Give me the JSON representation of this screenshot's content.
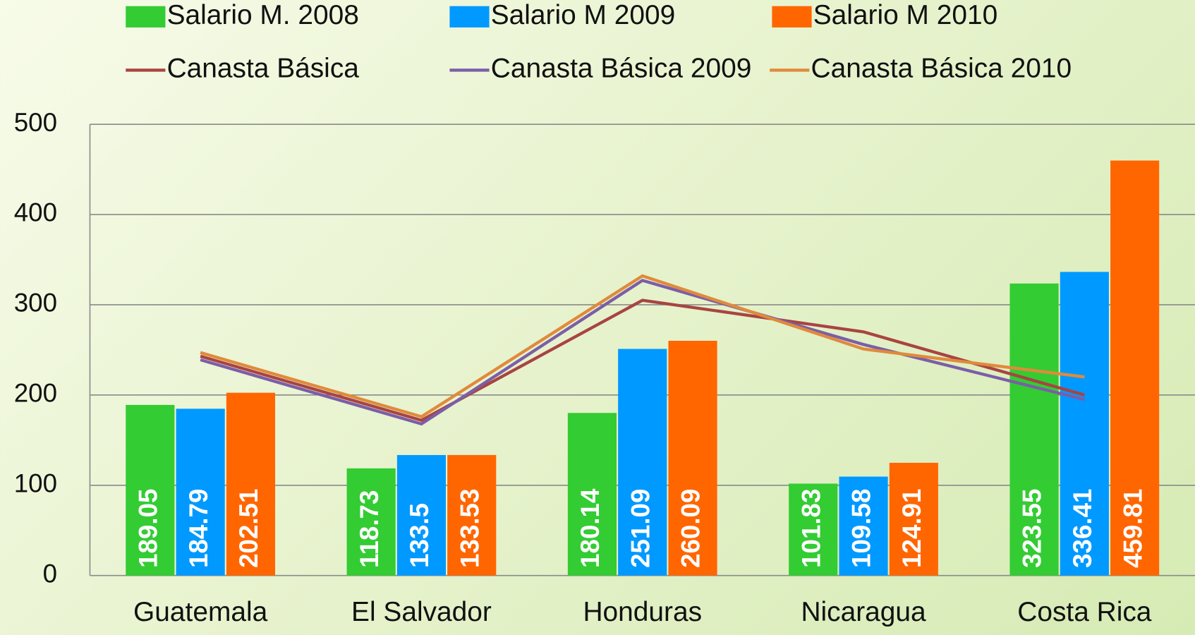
{
  "chart_data": {
    "type": "bar",
    "categories": [
      "Guatemala",
      "El Salvador",
      "Honduras",
      "Nicaragua",
      "Costa Rica"
    ],
    "series": [
      {
        "name": "Salario M. 2008",
        "type": "bar",
        "color": "#33cc33",
        "values": [
          189.05,
          118.73,
          180.14,
          101.83,
          323.55
        ]
      },
      {
        "name": "Salario M 2009",
        "type": "bar",
        "color": "#0099ff",
        "values": [
          184.79,
          133.5,
          251.09,
          109.58,
          336.41
        ]
      },
      {
        "name": "Salario M 2010",
        "type": "bar",
        "color": "#ff6600",
        "values": [
          202.51,
          133.53,
          260.09,
          124.91,
          459.81
        ]
      },
      {
        "name": "Canasta Básica",
        "type": "line",
        "color": "#a84442",
        "values": [
          243,
          172,
          305,
          270,
          200
        ]
      },
      {
        "name": "Canasta Básica 2009",
        "type": "line",
        "color": "#7b5ea7",
        "values": [
          239,
          168,
          327,
          256,
          195
        ]
      },
      {
        "name": "Canasta Básica 2010",
        "type": "line",
        "color": "#e08a3c",
        "values": [
          247,
          176,
          332,
          251,
          220
        ]
      }
    ],
    "ylim": [
      0,
      500
    ],
    "yticks": [
      0,
      100,
      200,
      300,
      400,
      500
    ],
    "grid": true
  }
}
